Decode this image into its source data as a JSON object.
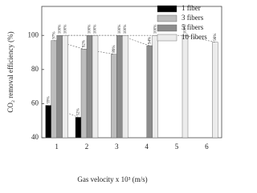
{
  "chart_data": {
    "type": "bar",
    "xlabel": "Gas velocity x 10³ (m/s)",
    "ylabel": "CO₂ removal efficiency (%)",
    "categories": [
      "1",
      "2",
      "3",
      "4",
      "5",
      "6"
    ],
    "series": [
      {
        "name": "1 fiber",
        "color": "#000000",
        "values": [
          59,
          52,
          null,
          null,
          null,
          null
        ],
        "value_labels": [
          "59%",
          "52%",
          null,
          null,
          null,
          null
        ]
      },
      {
        "name": "3 fibers",
        "color": "#bdbdbd",
        "values": [
          97,
          92,
          89,
          null,
          null,
          null
        ],
        "value_labels": [
          "97%",
          "92%",
          "89%",
          null,
          null,
          null
        ]
      },
      {
        "name": "5 fibers",
        "color": "#8c8c8c",
        "values": [
          100,
          100,
          100,
          94,
          null,
          null
        ],
        "value_labels": [
          "100%",
          "100%",
          "100%",
          "94%",
          null,
          null
        ]
      },
      {
        "name": "10 fibers",
        "color": "#ececec",
        "values": [
          100,
          100,
          100,
          100,
          100,
          96
        ],
        "value_labels": [
          "100%",
          "100%",
          "100%",
          "100%",
          "100%",
          "96%"
        ]
      }
    ],
    "ylim": [
      40,
      117
    ],
    "yticks": [
      40,
      60,
      80,
      100
    ],
    "legend": "upper-right"
  }
}
